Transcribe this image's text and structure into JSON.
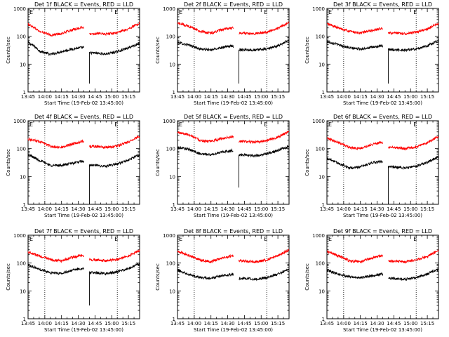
{
  "figure": {
    "ylabel": "Counts/sec",
    "xlabel": "Start Time (19-Feb-02 13:45:00)",
    "x_tick_labels": [
      "13:45",
      "14:00",
      "14:15",
      "14:30",
      "14:45",
      "15:00",
      "15:15"
    ],
    "y_tick_labels": [
      "1",
      "10",
      "100",
      "1000"
    ],
    "marker_label": "E",
    "colors": {
      "events": "#000000",
      "lld": "#ff0000",
      "axes": "#000000",
      "background": "#ffffff"
    }
  },
  "chart_data": [
    {
      "type": "line",
      "title": "Det 1f BLACK = Events, RED = LLD",
      "x_unit": "minutes since 13:45",
      "xlim": [
        0,
        100
      ],
      "ylim": [
        1,
        1000
      ],
      "y_scale": "log",
      "grid": false,
      "vlines": [
        15,
        80
      ],
      "gap": [
        50,
        55
      ],
      "dip": {
        "x": 55,
        "value": 2
      },
      "series": [
        {
          "name": "Events",
          "color": "#000000",
          "x": [
            0,
            10,
            20,
            30,
            40,
            49,
            55,
            60,
            70,
            80,
            90,
            100
          ],
          "values": [
            60,
            30,
            22,
            28,
            35,
            40,
            25,
            25,
            23,
            28,
            38,
            55
          ]
        },
        {
          "name": "LLD",
          "color": "#ff0000",
          "x": [
            0,
            10,
            20,
            30,
            40,
            49,
            55,
            60,
            70,
            80,
            90,
            100
          ],
          "values": [
            270,
            150,
            110,
            125,
            170,
            210,
            120,
            125,
            120,
            135,
            180,
            290
          ]
        }
      ]
    },
    {
      "type": "line",
      "title": "Det 2f BLACK = Events, RED = LLD",
      "x_unit": "minutes since 13:45",
      "xlim": [
        0,
        100
      ],
      "ylim": [
        1,
        1000
      ],
      "y_scale": "log",
      "grid": false,
      "vlines": [
        15,
        80
      ],
      "gap": [
        50,
        55
      ],
      "dip": {
        "x": 55,
        "value": 2
      },
      "series": [
        {
          "name": "Events",
          "color": "#000000",
          "x": [
            0,
            10,
            20,
            30,
            40,
            49,
            55,
            60,
            70,
            80,
            90,
            100
          ],
          "values": [
            60,
            48,
            35,
            32,
            40,
            45,
            33,
            33,
            32,
            35,
            45,
            70
          ]
        },
        {
          "name": "LLD",
          "color": "#ff0000",
          "x": [
            0,
            10,
            20,
            30,
            40,
            49,
            55,
            60,
            70,
            80,
            90,
            100
          ],
          "values": [
            300,
            230,
            150,
            130,
            170,
            200,
            130,
            130,
            125,
            140,
            190,
            310
          ]
        }
      ]
    },
    {
      "type": "line",
      "title": "Det 3f BLACK = Events, RED = LLD",
      "x_unit": "minutes since 13:45",
      "xlim": [
        0,
        100
      ],
      "ylim": [
        1,
        1000
      ],
      "y_scale": "log",
      "grid": false,
      "vlines": [
        15,
        80
      ],
      "gap": [
        50,
        55
      ],
      "dip": {
        "x": 55,
        "value": 2
      },
      "series": [
        {
          "name": "Events",
          "color": "#000000",
          "x": [
            0,
            10,
            20,
            30,
            40,
            49,
            55,
            60,
            70,
            80,
            90,
            100
          ],
          "values": [
            65,
            50,
            38,
            35,
            40,
            45,
            33,
            33,
            32,
            35,
            45,
            70
          ]
        },
        {
          "name": "LLD",
          "color": "#ff0000",
          "x": [
            0,
            10,
            20,
            30,
            40,
            49,
            55,
            60,
            70,
            80,
            90,
            100
          ],
          "values": [
            280,
            200,
            150,
            130,
            160,
            190,
            130,
            130,
            125,
            140,
            180,
            290
          ]
        }
      ]
    },
    {
      "type": "line",
      "title": "Det 4f BLACK = Events, RED = LLD",
      "x_unit": "minutes since 13:45",
      "xlim": [
        0,
        100
      ],
      "ylim": [
        1,
        1000
      ],
      "y_scale": "log",
      "grid": false,
      "vlines": [
        15,
        80
      ],
      "gap": [
        50,
        55
      ],
      "dip": {
        "x": 55,
        "value": 1
      },
      "series": [
        {
          "name": "Events",
          "color": "#000000",
          "x": [
            0,
            10,
            20,
            30,
            40,
            49,
            55,
            60,
            70,
            80,
            90,
            100
          ],
          "values": [
            60,
            38,
            25,
            25,
            30,
            35,
            25,
            25,
            23,
            28,
            38,
            60
          ]
        },
        {
          "name": "LLD",
          "color": "#ff0000",
          "x": [
            0,
            10,
            20,
            30,
            40,
            49,
            55,
            60,
            70,
            80,
            90,
            100
          ],
          "values": [
            220,
            180,
            120,
            110,
            150,
            180,
            120,
            120,
            110,
            125,
            170,
            280
          ]
        }
      ]
    },
    {
      "type": "line",
      "title": "Det 5f BLACK = Events, RED = LLD",
      "x_unit": "minutes since 13:45",
      "xlim": [
        0,
        100
      ],
      "ylim": [
        1,
        1000
      ],
      "y_scale": "log",
      "grid": false,
      "vlines": [
        15,
        80
      ],
      "gap": [
        50,
        55
      ],
      "dip": {
        "x": 55,
        "value": 4
      },
      "series": [
        {
          "name": "Events",
          "color": "#000000",
          "x": [
            0,
            10,
            20,
            30,
            40,
            49,
            55,
            60,
            70,
            80,
            90,
            100
          ],
          "values": [
            110,
            95,
            65,
            60,
            75,
            85,
            60,
            60,
            55,
            65,
            85,
            120
          ]
        },
        {
          "name": "LLD",
          "color": "#ff0000",
          "x": [
            0,
            10,
            20,
            30,
            40,
            49,
            55,
            60,
            70,
            80,
            90,
            100
          ],
          "values": [
            380,
            320,
            200,
            180,
            230,
            270,
            180,
            180,
            170,
            190,
            260,
            400
          ]
        }
      ]
    },
    {
      "type": "line",
      "title": "Det 6f BLACK = Events, RED = LLD",
      "x_unit": "minutes since 13:45",
      "xlim": [
        0,
        100
      ],
      "ylim": [
        1,
        1000
      ],
      "y_scale": "log",
      "grid": false,
      "vlines": [
        15,
        80
      ],
      "gap": [
        50,
        55
      ],
      "dip": {
        "x": 55,
        "value": 1
      },
      "series": [
        {
          "name": "Events",
          "color": "#000000",
          "x": [
            0,
            10,
            20,
            30,
            40,
            49,
            55,
            60,
            70,
            80,
            90,
            100
          ],
          "values": [
            45,
            30,
            20,
            22,
            30,
            35,
            22,
            22,
            20,
            23,
            32,
            50
          ]
        },
        {
          "name": "LLD",
          "color": "#ff0000",
          "x": [
            0,
            10,
            20,
            30,
            40,
            49,
            55,
            60,
            70,
            80,
            90,
            100
          ],
          "values": [
            230,
            170,
            110,
            100,
            140,
            170,
            110,
            110,
            100,
            115,
            160,
            260
          ]
        }
      ]
    },
    {
      "type": "line",
      "title": "Det 7f BLACK = Events, RED = LLD",
      "x_unit": "minutes since 13:45",
      "xlim": [
        0,
        100
      ],
      "ylim": [
        1,
        1000
      ],
      "y_scale": "log",
      "grid": false,
      "vlines": [
        15,
        80
      ],
      "gap": [
        50,
        55
      ],
      "dip": {
        "x": 55,
        "value": 3
      },
      "series": [
        {
          "name": "Events",
          "color": "#000000",
          "x": [
            0,
            10,
            20,
            30,
            40,
            49,
            55,
            60,
            70,
            80,
            90,
            100
          ],
          "values": [
            85,
            60,
            45,
            42,
            55,
            65,
            45,
            45,
            42,
            48,
            62,
            95
          ]
        },
        {
          "name": "LLD",
          "color": "#ff0000",
          "x": [
            0,
            10,
            20,
            30,
            40,
            49,
            55,
            60,
            70,
            80,
            90,
            100
          ],
          "values": [
            250,
            180,
            130,
            120,
            160,
            190,
            130,
            130,
            120,
            135,
            180,
            280
          ]
        }
      ]
    },
    {
      "type": "line",
      "title": "Det 8f BLACK = Events, RED = LLD",
      "x_unit": "minutes since 13:45",
      "xlim": [
        0,
        100
      ],
      "ylim": [
        1,
        1000
      ],
      "y_scale": "log",
      "grid": false,
      "vlines": [
        15,
        80
      ],
      "gap": [
        50,
        55
      ],
      "dip": null,
      "series": [
        {
          "name": "Events",
          "color": "#000000",
          "x": [
            0,
            10,
            20,
            30,
            40,
            49,
            55,
            60,
            70,
            80,
            90,
            100
          ],
          "values": [
            55,
            40,
            30,
            28,
            35,
            40,
            28,
            28,
            26,
            30,
            40,
            58
          ]
        },
        {
          "name": "LLD",
          "color": "#ff0000",
          "x": [
            0,
            10,
            20,
            30,
            40,
            49,
            55,
            60,
            70,
            80,
            90,
            100
          ],
          "values": [
            260,
            190,
            130,
            110,
            150,
            180,
            120,
            120,
            110,
            130,
            180,
            290
          ]
        }
      ]
    },
    {
      "type": "line",
      "title": "Det 9f BLACK = Events, RED = LLD",
      "x_unit": "minutes since 13:45",
      "xlim": [
        0,
        100
      ],
      "ylim": [
        1,
        1000
      ],
      "y_scale": "log",
      "grid": false,
      "vlines": [
        15,
        80
      ],
      "gap": [
        50,
        55
      ],
      "dip": null,
      "series": [
        {
          "name": "Events",
          "color": "#000000",
          "x": [
            0,
            10,
            20,
            30,
            40,
            49,
            55,
            60,
            70,
            80,
            90,
            100
          ],
          "values": [
            55,
            40,
            32,
            30,
            35,
            40,
            28,
            28,
            26,
            30,
            40,
            60
          ]
        },
        {
          "name": "LLD",
          "color": "#ff0000",
          "x": [
            0,
            10,
            20,
            30,
            40,
            49,
            55,
            60,
            70,
            80,
            90,
            100
          ],
          "values": [
            260,
            180,
            120,
            110,
            150,
            180,
            120,
            120,
            110,
            130,
            170,
            280
          ]
        }
      ]
    }
  ]
}
